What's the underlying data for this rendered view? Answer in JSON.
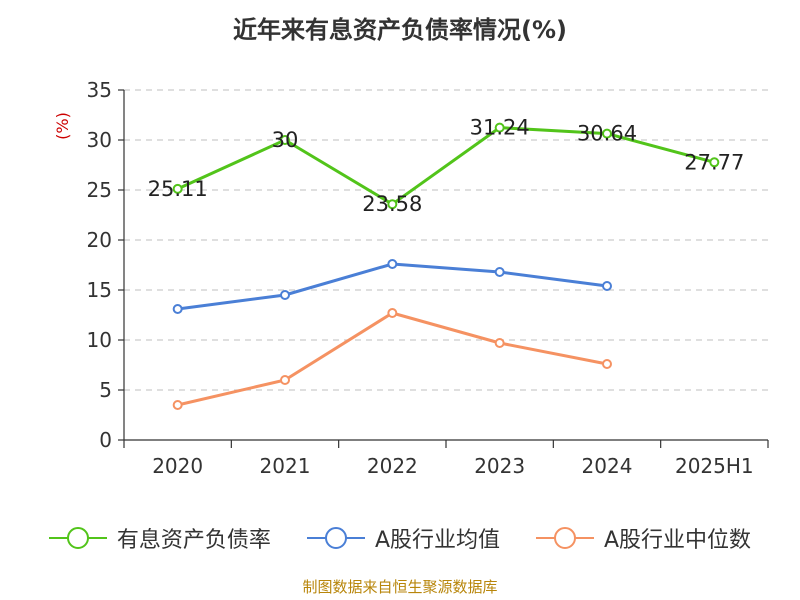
{
  "title": "近年来有息资产负债率情况(%)",
  "source": "制图数据来自恒生聚源数据库",
  "chart_data": {
    "type": "line",
    "categories": [
      "2020",
      "2021",
      "2022",
      "2023",
      "2024",
      "2025H1"
    ],
    "ylabel": "(%)",
    "ylim": [
      0,
      35
    ],
    "yticks": [
      0,
      5,
      10,
      15,
      20,
      25,
      30,
      35
    ],
    "grid": true,
    "legend_position": "bottom",
    "series": [
      {
        "name": "有息资产负债率",
        "color": "#52c41a",
        "values": [
          25.11,
          30,
          23.58,
          31.24,
          30.64,
          27.77
        ],
        "labels": [
          "25.11",
          "30",
          "23.58",
          "31.24",
          "30.64",
          "27.77"
        ]
      },
      {
        "name": "A股行业均值",
        "color": "#4a7fd6",
        "values": [
          13.1,
          14.5,
          17.6,
          16.8,
          15.4,
          null
        ]
      },
      {
        "name": "A股行业中位数",
        "color": "#f59262",
        "values": [
          3.5,
          6.0,
          12.7,
          9.7,
          7.6,
          null
        ]
      }
    ]
  }
}
